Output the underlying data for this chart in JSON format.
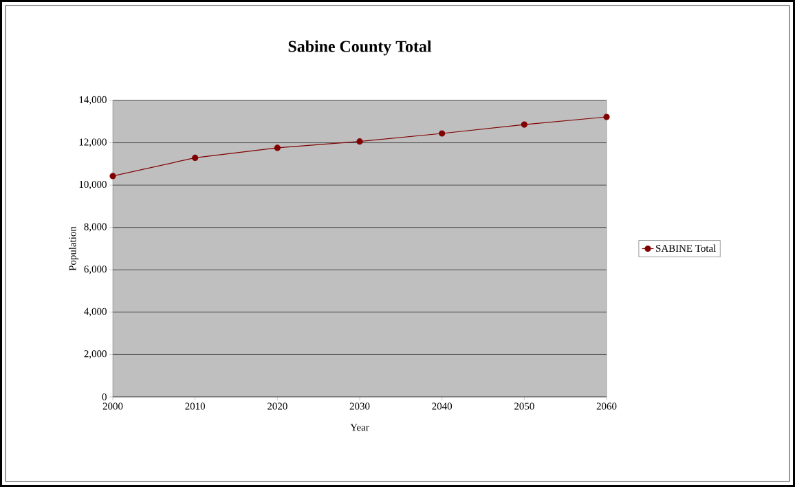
{
  "chart_data": {
    "type": "line",
    "title": "Sabine County Total",
    "xlabel": "Year",
    "ylabel": "Population",
    "x": [
      2000,
      2010,
      2020,
      2030,
      2040,
      2050,
      2060
    ],
    "series": [
      {
        "name": "SABINE Total",
        "color": "#800000",
        "values": [
          10430,
          11290,
          11760,
          12060,
          12440,
          12860,
          13220
        ]
      }
    ],
    "xlim": [
      2000,
      2060
    ],
    "xticks": [
      2000,
      2010,
      2020,
      2030,
      2040,
      2050,
      2060
    ],
    "ylim": [
      0,
      14000
    ],
    "yticks": [
      {
        "value": 0,
        "label": "0"
      },
      {
        "value": 2000,
        "label": "2,000"
      },
      {
        "value": 4000,
        "label": "4,000"
      },
      {
        "value": 6000,
        "label": "6,000"
      },
      {
        "value": 8000,
        "label": "8,000"
      },
      {
        "value": 10000,
        "label": "10,000"
      },
      {
        "value": 12000,
        "label": "12,000"
      },
      {
        "value": 14000,
        "label": "14,000"
      }
    ],
    "grid": "y",
    "legend": "right",
    "marker": "circle",
    "line_style": "solid"
  }
}
